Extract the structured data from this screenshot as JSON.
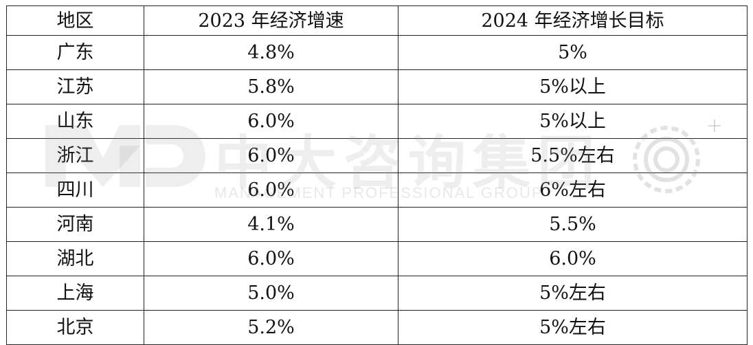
{
  "table": {
    "headers": [
      "地区",
      "2023 年经济增速",
      "2024 年经济增长目标"
    ],
    "rows": [
      [
        "广东",
        "4.8%",
        "5%"
      ],
      [
        "江苏",
        "5.8%",
        "5%以上"
      ],
      [
        "山东",
        "6.0%",
        "5%以上"
      ],
      [
        "浙江",
        "6.0%",
        "5.5%左右"
      ],
      [
        "四川",
        "6.0%",
        "6%左右"
      ],
      [
        "河南",
        "4.1%",
        "5.5%"
      ],
      [
        "湖北",
        "6.0%",
        "6.0%"
      ],
      [
        "上海",
        "5.0%",
        "5%左右"
      ],
      [
        "北京",
        "5.2%",
        "5%左右"
      ]
    ]
  },
  "watermark": {
    "logo_text": "中大咨询集团",
    "subtitle": "MANAGEMENT PROFESSIONAL GROUP",
    "color": "#969696"
  }
}
